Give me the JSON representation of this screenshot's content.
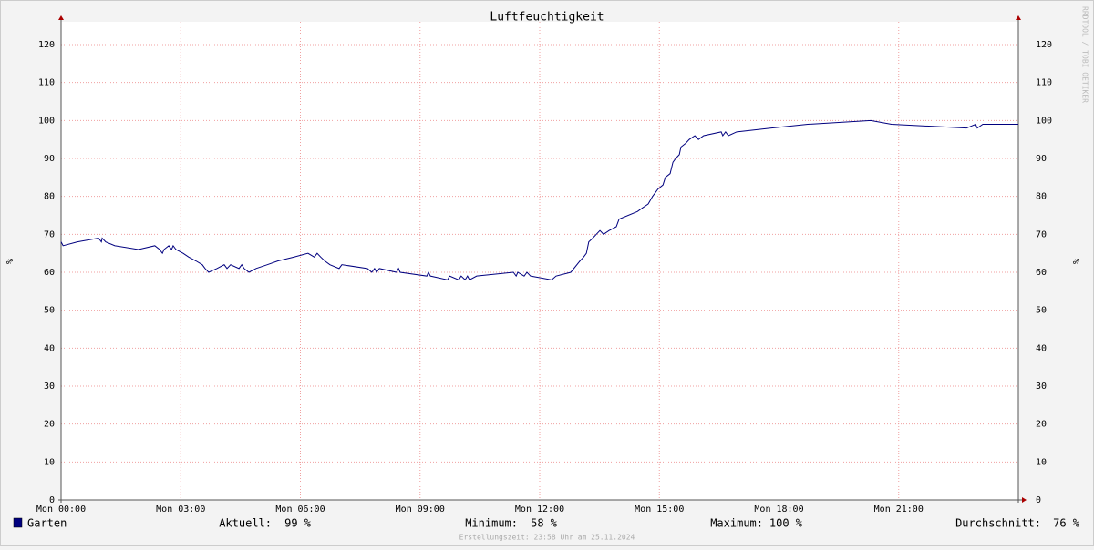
{
  "chart_data": {
    "type": "line",
    "title": "Luftfeuchtigkeit",
    "y_label": "%",
    "watermark": "RRDTOOL / TOBI OETIKER",
    "footer": "Erstellungszeit: 23:58 Uhr am 25.11.2024",
    "xlim": [
      0,
      24
    ],
    "xticks": [
      {
        "value": 0,
        "label": "Mon 00:00"
      },
      {
        "value": 3,
        "label": "Mon 03:00"
      },
      {
        "value": 6,
        "label": "Mon 06:00"
      },
      {
        "value": 9,
        "label": "Mon 09:00"
      },
      {
        "value": 12,
        "label": "Mon 12:00"
      },
      {
        "value": 15,
        "label": "Mon 15:00"
      },
      {
        "value": 18,
        "label": "Mon 18:00"
      },
      {
        "value": 21,
        "label": "Mon 21:00"
      }
    ],
    "ylim": [
      0,
      126
    ],
    "yticks": [
      0,
      10,
      20,
      30,
      40,
      50,
      60,
      70,
      80,
      90,
      100,
      110,
      120
    ],
    "grid": true,
    "series": [
      {
        "name": "Garten",
        "color": "#00007f",
        "x": [
          0,
          0.05,
          0.41,
          0.94,
          1.01,
          1.03,
          1.12,
          1.35,
          1.94,
          2.35,
          2.47,
          2.54,
          2.58,
          2.7,
          2.77,
          2.81,
          2.88,
          3.06,
          3.2,
          3.38,
          3.54,
          3.61,
          3.7,
          3.91,
          4.09,
          4.16,
          4.25,
          4.46,
          4.53,
          4.59,
          4.71,
          4.89,
          5.17,
          5.44,
          5.83,
          6.19,
          6.35,
          6.42,
          6.51,
          6.61,
          6.74,
          6.97,
          7.04,
          7.68,
          7.79,
          7.86,
          7.91,
          7.98,
          8.41,
          8.46,
          8.5,
          9.17,
          9.21,
          9.26,
          9.69,
          9.74,
          9.97,
          10.03,
          10.13,
          10.19,
          10.24,
          10.42,
          11.34,
          11.41,
          11.45,
          11.61,
          11.68,
          11.77,
          12.3,
          12.41,
          12.78,
          13.01,
          13.1,
          13.17,
          13.23,
          13.33,
          13.42,
          13.51,
          13.6,
          13.74,
          13.92,
          13.99,
          14.45,
          14.58,
          14.72,
          14.83,
          14.97,
          15.09,
          15.15,
          15.27,
          15.34,
          15.41,
          15.5,
          15.54,
          15.66,
          15.75,
          15.89,
          15.98,
          16.11,
          16.55,
          16.59,
          16.66,
          16.73,
          16.94,
          17.81,
          18.72,
          20.3,
          20.82,
          22.7,
          22.93,
          22.97,
          23.11,
          24
        ],
        "values": [
          68,
          67,
          68,
          69,
          68,
          69,
          68,
          67,
          66,
          67,
          66,
          65,
          66,
          67,
          66,
          67,
          66,
          65,
          64,
          63,
          62,
          61,
          60,
          61,
          62,
          61,
          62,
          61,
          62,
          61,
          60,
          61,
          62,
          63,
          64,
          65,
          64,
          65,
          64,
          63,
          62,
          61,
          62,
          61,
          60,
          61,
          60,
          61,
          60,
          61,
          60,
          59,
          60,
          59,
          58,
          59,
          58,
          59,
          58,
          59,
          58,
          59,
          60,
          59,
          60,
          59,
          60,
          59,
          58,
          59,
          60,
          63,
          64,
          65,
          68,
          69,
          70,
          71,
          70,
          71,
          72,
          74,
          76,
          77,
          78,
          80,
          82,
          83,
          85,
          86,
          89,
          90,
          91,
          93,
          94,
          95,
          96,
          95,
          96,
          97,
          96,
          97,
          96,
          97,
          98,
          99,
          100,
          99,
          98,
          99,
          98,
          99,
          99
        ]
      }
    ],
    "legend_stats": [
      {
        "label": "Aktuell:",
        "text": "99 %"
      },
      {
        "label": "Minimum:",
        "text": "58 %"
      },
      {
        "label": "Maximum:",
        "text": "100 %"
      },
      {
        "label": "Durchschnitt:",
        "text": "76 %"
      }
    ]
  }
}
